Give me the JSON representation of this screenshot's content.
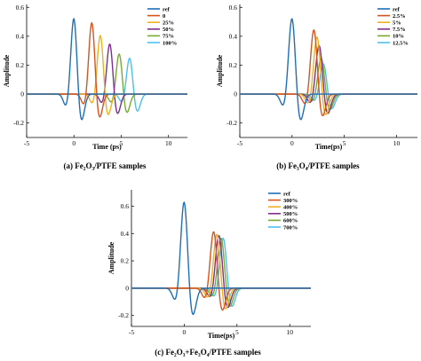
{
  "colors": {
    "ref": "#1f6fb5",
    "c1": "#d9531e",
    "c2": "#efb120",
    "c3": "#7e2f8e",
    "c4": "#77ac30",
    "c5": "#4dbeee"
  },
  "chart_data": [
    {
      "type": "line",
      "caption": "(a) Fe₂O₃/PTFE samples",
      "xlabel": "Time (ps)",
      "ylabel": "Amplitude",
      "xlim": [
        -5,
        12
      ],
      "ylim": [
        -0.3,
        0.62
      ],
      "xticks": [
        -5,
        0,
        5,
        10
      ],
      "yticks": [
        -0.2,
        0,
        0.2,
        0.4,
        0.6
      ],
      "tick_labels_x": [
        "-5",
        "0",
        "5",
        "10"
      ],
      "tick_labels_y": [
        "-0.2",
        "0",
        "0.2",
        "0.4",
        "0.6"
      ],
      "legend_position": "top-right",
      "series": [
        {
          "name": "ref",
          "color_key": "ref",
          "peak_t": 0.0,
          "peak": 0.54,
          "trough": 0.2
        },
        {
          "name": "0",
          "color_key": "c1",
          "peak_t": 1.9,
          "peak": 0.51,
          "trough": 0.18
        },
        {
          "name": "25%",
          "color_key": "c2",
          "peak_t": 2.8,
          "peak": 0.42,
          "trough": 0.16
        },
        {
          "name": "50%",
          "color_key": "c3",
          "peak_t": 3.8,
          "peak": 0.36,
          "trough": 0.15
        },
        {
          "name": "75%",
          "color_key": "c4",
          "peak_t": 4.8,
          "peak": 0.29,
          "trough": 0.14
        },
        {
          "name": "100%",
          "color_key": "c5",
          "peak_t": 5.9,
          "peak": 0.26,
          "trough": 0.13
        }
      ]
    },
    {
      "type": "line",
      "caption": "(b) Fe₃O₄/PTFE samples",
      "xlabel": "Time(ps)",
      "ylabel": "Amplitude",
      "xlim": [
        -5,
        12
      ],
      "ylim": [
        -0.3,
        0.62
      ],
      "xticks": [
        -5,
        0,
        5,
        10
      ],
      "yticks": [
        -0.2,
        0,
        0.2,
        0.4,
        0.6
      ],
      "tick_labels_x": [
        "-5",
        "0",
        "5",
        "10"
      ],
      "tick_labels_y": [
        "-0.2",
        "0",
        "0.2",
        "0.4",
        "0.6"
      ],
      "legend_position": "top-right",
      "series": [
        {
          "name": "ref",
          "color_key": "ref",
          "peak_t": 0.0,
          "peak": 0.54,
          "trough": 0.2
        },
        {
          "name": "2.5%",
          "color_key": "c1",
          "peak_t": 2.1,
          "peak": 0.46,
          "trough": 0.17
        },
        {
          "name": "5%",
          "color_key": "c2",
          "peak_t": 2.4,
          "peak": 0.41,
          "trough": 0.16
        },
        {
          "name": "7.5%",
          "color_key": "c3",
          "peak_t": 2.6,
          "peak": 0.35,
          "trough": 0.15
        },
        {
          "name": "10%",
          "color_key": "c4",
          "peak_t": 2.8,
          "peak": 0.26,
          "trough": 0.12
        },
        {
          "name": "12.5%",
          "color_key": "c5",
          "peak_t": 3.0,
          "peak": 0.22,
          "trough": 0.11
        }
      ]
    },
    {
      "type": "line",
      "caption": "(c) Fe₂O₃+Fe₃O₄/PTFE samples",
      "xlabel": "Time(ps)",
      "ylabel": "Amplitude",
      "xlim": [
        -5,
        12
      ],
      "ylim": [
        -0.28,
        0.72
      ],
      "xticks": [
        -5,
        0,
        5,
        10
      ],
      "yticks": [
        -0.2,
        0,
        0.2,
        0.4,
        0.6
      ],
      "tick_labels_x": [
        "-5",
        "0",
        "5",
        "10"
      ],
      "tick_labels_y": [
        "-0.2",
        "0",
        "0.2",
        "0.4",
        "0.6"
      ],
      "legend_position": "top-right",
      "series": [
        {
          "name": "ref",
          "color_key": "ref",
          "peak_t": 0.0,
          "peak": 0.65,
          "trough": 0.22
        },
        {
          "name": "300%",
          "color_key": "c1",
          "peak_t": 2.8,
          "peak": 0.43,
          "trough": 0.18
        },
        {
          "name": "400%",
          "color_key": "c2",
          "peak_t": 3.1,
          "peak": 0.41,
          "trough": 0.17
        },
        {
          "name": "500%",
          "color_key": "c3",
          "peak_t": 3.3,
          "peak": 0.4,
          "trough": 0.16
        },
        {
          "name": "600%",
          "color_key": "c4",
          "peak_t": 3.5,
          "peak": 0.38,
          "trough": 0.15
        },
        {
          "name": "700%",
          "color_key": "c5",
          "peak_t": 3.7,
          "peak": 0.38,
          "trough": 0.15
        }
      ]
    }
  ]
}
